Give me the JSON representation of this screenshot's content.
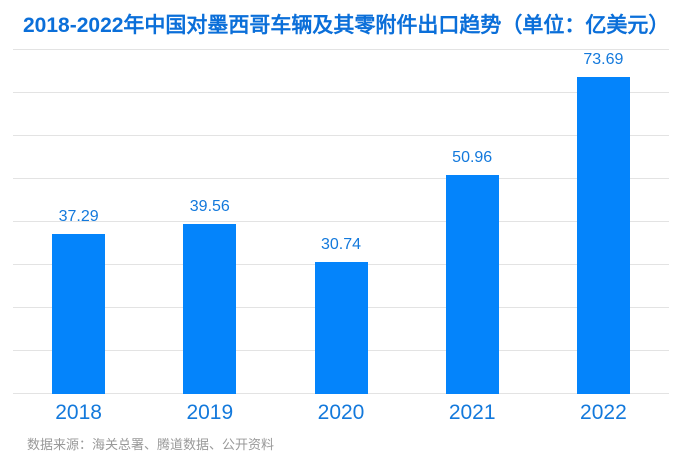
{
  "header": {
    "title": "2018-2022年中国对墨西哥车辆及其零附件出口趋势（单位：亿美元）"
  },
  "footer": {
    "source": "数据来源：海关总署、腾道数据、公开资料"
  },
  "colors": {
    "title": "#0b6fd9",
    "bar": "#0484fb",
    "data_label": "#1379dc",
    "axis_label": "#1379dc",
    "gridline": "#e3e3e3",
    "source_text": "#999999",
    "background": "#ffffff"
  },
  "chart_data": {
    "type": "bar",
    "title": "2018-2022年中国对墨西哥车辆及其零附件出口趋势（单位：亿美元）",
    "categories": [
      "2018",
      "2019",
      "2020",
      "2021",
      "2022"
    ],
    "values": [
      37.29,
      39.56,
      30.74,
      50.96,
      73.69
    ],
    "value_labels": [
      "37.29",
      "39.56",
      "30.74",
      "50.96",
      "73.69"
    ],
    "xlabel": "",
    "ylabel": "",
    "unit": "亿美元",
    "ylim": [
      0,
      80
    ],
    "grid_step": 10,
    "grid": true,
    "y_axis_tick_labels_visible": false,
    "legend_position": "none",
    "data_labels_visible": true
  }
}
